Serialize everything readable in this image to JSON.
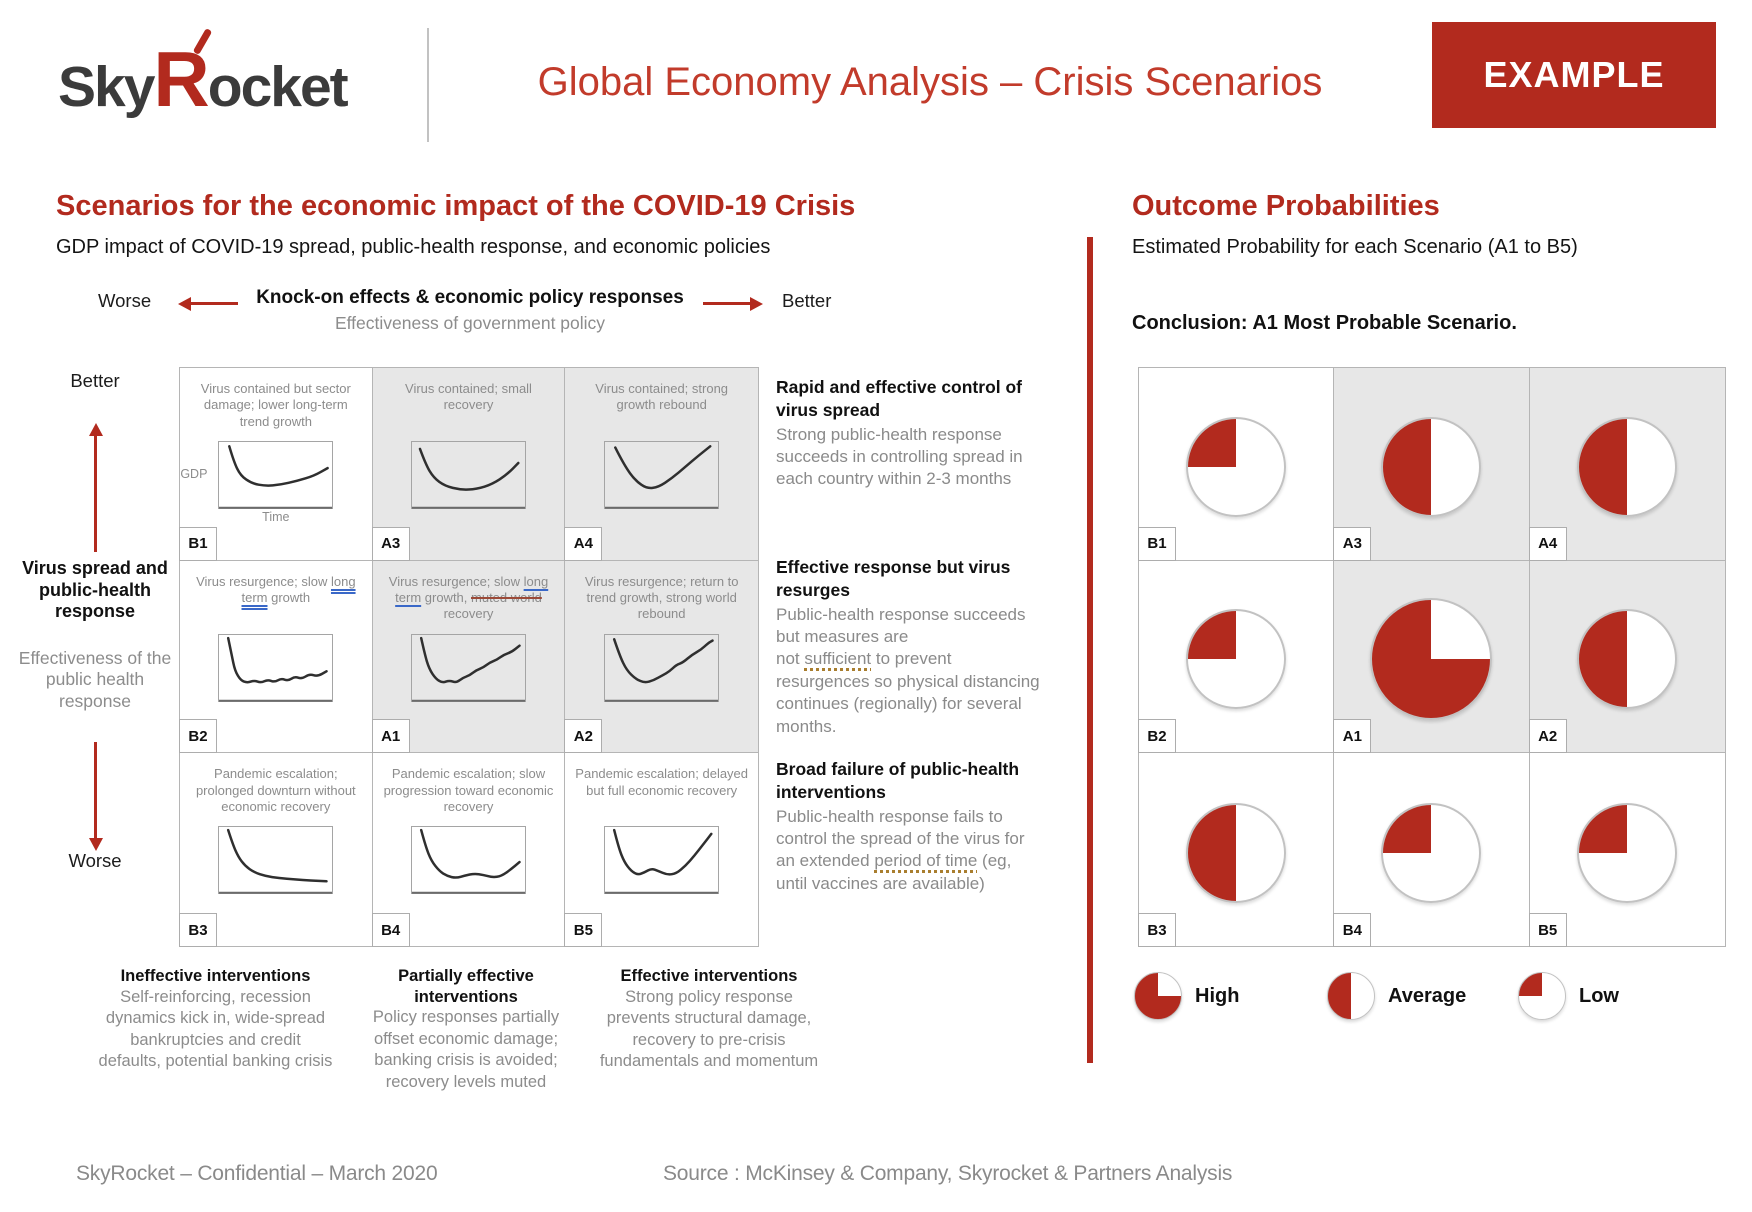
{
  "colors": {
    "accent": "#B22A1E",
    "title_red": "#C23B2B",
    "shaded_cell": "#E7E7E7"
  },
  "header": {
    "logo": {
      "prefix": "Sky",
      "r": "R",
      "suffix": "ocket"
    },
    "title": "Global Economy Analysis – Crisis Scenarios",
    "badge": "EXAMPLE"
  },
  "left": {
    "title": "Scenarios for the economic impact of the COVID-19 Crisis",
    "subtitle": "GDP impact of COVID-19 spread, public-health response, and economic policies",
    "x_axis": {
      "worse": "Worse",
      "better": "Better",
      "title": "Knock-on effects & economic policy responses",
      "subtitle": "Effectiveness of government policy"
    },
    "y_axis": {
      "better": "Better",
      "worse": "Worse",
      "title": "Virus spread and public-health response",
      "subtitle": "Effectiveness of the public health response"
    }
  },
  "scenarios": [
    {
      "id": "B1",
      "shaded": false,
      "y_label": "GDP",
      "x_label": "Time",
      "caption": [
        {
          "t": "Virus contained but sector damage; lower long-term trend growth"
        }
      ],
      "curve": [
        [
          10,
          6
        ],
        [
          14,
          30
        ],
        [
          20,
          52
        ],
        [
          30,
          64
        ],
        [
          42,
          68
        ],
        [
          55,
          66
        ],
        [
          70,
          60
        ],
        [
          85,
          52
        ],
        [
          97,
          40
        ]
      ]
    },
    {
      "id": "A3",
      "shaded": true,
      "caption": [
        {
          "t": "Virus contained; small recovery"
        }
      ],
      "curve": [
        [
          8,
          10
        ],
        [
          13,
          34
        ],
        [
          20,
          55
        ],
        [
          30,
          68
        ],
        [
          44,
          74
        ],
        [
          58,
          73
        ],
        [
          72,
          65
        ],
        [
          85,
          50
        ],
        [
          95,
          32
        ]
      ]
    },
    {
      "id": "A4",
      "shaded": true,
      "caption": [
        {
          "t": "Virus contained; strong growth rebound"
        }
      ],
      "curve": [
        [
          10,
          8
        ],
        [
          18,
          36
        ],
        [
          28,
          60
        ],
        [
          38,
          72
        ],
        [
          48,
          70
        ],
        [
          60,
          56
        ],
        [
          72,
          38
        ],
        [
          84,
          20
        ],
        [
          94,
          6
        ]
      ]
    },
    {
      "id": "B2",
      "shaded": false,
      "caption": [
        {
          "t": "Virus resurgence; slow "
        },
        {
          "t": "long term",
          "m": "blue2"
        },
        {
          "t": " growth"
        }
      ],
      "curve": [
        [
          9,
          4
        ],
        [
          12,
          30
        ],
        [
          15,
          55
        ],
        [
          20,
          70
        ],
        [
          26,
          74
        ],
        [
          32,
          70
        ],
        [
          38,
          74
        ],
        [
          44,
          69
        ],
        [
          50,
          73
        ],
        [
          56,
          67
        ],
        [
          62,
          71
        ],
        [
          68,
          64
        ],
        [
          74,
          68
        ],
        [
          81,
          60
        ],
        [
          88,
          64
        ],
        [
          96,
          56
        ]
      ]
    },
    {
      "id": "A1",
      "shaded": true,
      "caption": [
        {
          "t": "Virus resurgence; slow "
        },
        {
          "t": "long term",
          "m": "blue1"
        },
        {
          "t": " growth, "
        },
        {
          "t": "muted world",
          "m": "strike"
        },
        {
          "t": " recovery"
        }
      ],
      "curve": [
        [
          9,
          4
        ],
        [
          12,
          28
        ],
        [
          16,
          52
        ],
        [
          22,
          68
        ],
        [
          28,
          74
        ],
        [
          34,
          70
        ],
        [
          40,
          74
        ],
        [
          46,
          66
        ],
        [
          52,
          62
        ],
        [
          58,
          54
        ],
        [
          64,
          50
        ],
        [
          70,
          42
        ],
        [
          76,
          38
        ],
        [
          82,
          30
        ],
        [
          89,
          26
        ],
        [
          96,
          16
        ]
      ]
    },
    {
      "id": "A2",
      "shaded": true,
      "caption": [
        {
          "t": "Virus resurgence; return to trend growth, strong world rebound"
        }
      ],
      "curve": [
        [
          9,
          6
        ],
        [
          14,
          32
        ],
        [
          20,
          54
        ],
        [
          28,
          68
        ],
        [
          36,
          74
        ],
        [
          44,
          70
        ],
        [
          52,
          62
        ],
        [
          58,
          56
        ],
        [
          64,
          46
        ],
        [
          70,
          42
        ],
        [
          78,
          30
        ],
        [
          86,
          22
        ],
        [
          92,
          12
        ],
        [
          96,
          8
        ]
      ]
    },
    {
      "id": "B3",
      "shaded": false,
      "caption": [
        {
          "t": "Pandemic escalation; prolonged downturn without economic recovery"
        }
      ],
      "curve": [
        [
          9,
          4
        ],
        [
          13,
          26
        ],
        [
          18,
          46
        ],
        [
          24,
          60
        ],
        [
          32,
          70
        ],
        [
          42,
          76
        ],
        [
          54,
          79
        ],
        [
          68,
          81
        ],
        [
          82,
          83
        ],
        [
          96,
          84
        ]
      ]
    },
    {
      "id": "B4",
      "shaded": false,
      "caption": [
        {
          "t": "Pandemic escalation; slow progression toward economic recovery"
        }
      ],
      "curve": [
        [
          9,
          4
        ],
        [
          13,
          30
        ],
        [
          18,
          52
        ],
        [
          25,
          68
        ],
        [
          32,
          76
        ],
        [
          40,
          79
        ],
        [
          48,
          75
        ],
        [
          56,
          72
        ],
        [
          64,
          74
        ],
        [
          72,
          78
        ],
        [
          80,
          76
        ],
        [
          88,
          66
        ],
        [
          96,
          54
        ]
      ]
    },
    {
      "id": "B5",
      "shaded": false,
      "caption": [
        {
          "t": "Pandemic escalation; delayed but full economic recovery"
        }
      ],
      "curve": [
        [
          9,
          4
        ],
        [
          13,
          32
        ],
        [
          18,
          54
        ],
        [
          24,
          68
        ],
        [
          30,
          74
        ],
        [
          36,
          70
        ],
        [
          42,
          64
        ],
        [
          48,
          68
        ],
        [
          56,
          74
        ],
        [
          64,
          72
        ],
        [
          72,
          60
        ],
        [
          80,
          44
        ],
        [
          88,
          26
        ],
        [
          95,
          10
        ]
      ]
    }
  ],
  "descriptions": [
    {
      "heading": "Rapid and effective control of virus spread",
      "body": [
        {
          "t": "Strong public-health response succeeds in controlling spread in each country within 2-3 months"
        }
      ]
    },
    {
      "heading": "Effective response but virus resurges",
      "body": [
        {
          "t": "Public-health response succeeds but measures are"
        },
        {
          "br": true
        },
        {
          "t": "not "
        },
        {
          "t": "sufficient",
          "m": "dotted"
        },
        {
          "t": " to prevent resurgences so physical distancing continues (regionally) for several months."
        }
      ]
    },
    {
      "heading": "Broad failure of public-health interventions",
      "body": [
        {
          "t": "Public-health response fails to control the spread of the virus for an extended "
        },
        {
          "t": "period of time",
          "m": "dotted"
        },
        {
          "t": " (eg, until vaccines are available)"
        }
      ]
    }
  ],
  "annotations": [
    {
      "heading": "Ineffective interventions",
      "body": "Self-reinforcing, recession dynamics kick in, wide-spread bankruptcies and credit defaults, potential banking crisis"
    },
    {
      "heading": "Partially effective interventions",
      "body": "Policy responses partially offset economic damage; banking crisis is avoided; recovery levels muted"
    },
    {
      "heading": "Effective interventions",
      "body": "Strong policy response prevents structural damage, recovery to pre-crisis fundamentals and momentum"
    }
  ],
  "right": {
    "title": "Outcome Probabilities",
    "subtitle": "Estimated Probability for each Scenario (A1 to B5)",
    "conclusion": "Conclusion: A1 Most Probable Scenario."
  },
  "probabilities": {
    "cells": [
      {
        "id": "B1",
        "level": "low",
        "shaded": false
      },
      {
        "id": "A3",
        "level": "average",
        "shaded": true
      },
      {
        "id": "A4",
        "level": "average",
        "shaded": true
      },
      {
        "id": "B2",
        "level": "low",
        "shaded": false
      },
      {
        "id": "A1",
        "level": "high",
        "shaded": true,
        "emphasis": true
      },
      {
        "id": "A2",
        "level": "average",
        "shaded": true
      },
      {
        "id": "B3",
        "level": "average",
        "shaded": false
      },
      {
        "id": "B4",
        "level": "low",
        "shaded": false
      },
      {
        "id": "B5",
        "level": "low",
        "shaded": false
      }
    ],
    "legend": [
      {
        "label": "High",
        "level": "high"
      },
      {
        "label": "Average",
        "level": "average"
      },
      {
        "label": "Low",
        "level": "low"
      }
    ]
  },
  "chart_data": {
    "type": "pie",
    "title": "Outcome Probabilities",
    "legend_fractions": {
      "high": 0.75,
      "average": 0.5,
      "low": 0.25
    },
    "items": [
      {
        "scenario": "B1",
        "probability": "low",
        "fraction": 0.25
      },
      {
        "scenario": "A3",
        "probability": "average",
        "fraction": 0.5
      },
      {
        "scenario": "A4",
        "probability": "average",
        "fraction": 0.5
      },
      {
        "scenario": "B2",
        "probability": "low",
        "fraction": 0.25
      },
      {
        "scenario": "A1",
        "probability": "high",
        "fraction": 0.75
      },
      {
        "scenario": "A2",
        "probability": "average",
        "fraction": 0.5
      },
      {
        "scenario": "B3",
        "probability": "average",
        "fraction": 0.5
      },
      {
        "scenario": "B4",
        "probability": "low",
        "fraction": 0.25
      },
      {
        "scenario": "B5",
        "probability": "low",
        "fraction": 0.25
      }
    ]
  },
  "footer": {
    "confidential": "SkyRocket – Confidential – March 2020",
    "source": "Source : McKinsey & Company, Skyrocket & Partners Analysis"
  }
}
